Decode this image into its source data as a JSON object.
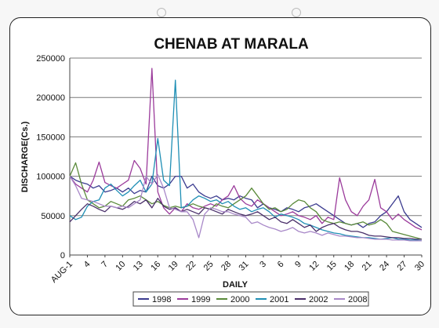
{
  "chart_data": {
    "type": "line",
    "title": "CHENAB AT MARALA",
    "xlabel": "DAILY",
    "ylabel": "DISCHARGE(Cs.)",
    "ylim": [
      0,
      250000
    ],
    "yticks": [
      "0",
      "50000",
      "100000",
      "150000",
      "200000",
      "250000"
    ],
    "x_tick_labels": [
      "AUG-1",
      "4",
      "7",
      "10",
      "13",
      "16",
      "19",
      "22",
      "25",
      "28",
      "31",
      "3",
      "6",
      "9",
      "12",
      "15",
      "18",
      "21",
      "24",
      "27",
      "30"
    ],
    "grid": "horizontal",
    "legend_position": "bottom",
    "series": [
      {
        "name": "1998",
        "color": "#3b3b8f",
        "values": [
          100000,
          95000,
          92000,
          90000,
          85000,
          88000,
          80000,
          82000,
          85000,
          80000,
          85000,
          78000,
          82000,
          80000,
          100000,
          88000,
          85000,
          90000,
          100000,
          100000,
          85000,
          90000,
          80000,
          75000,
          72000,
          75000,
          70000,
          72000,
          70000,
          75000,
          72000,
          70000,
          60000,
          65000,
          60000,
          58000,
          55000,
          60000,
          58000,
          55000,
          60000,
          62000,
          65000,
          60000,
          55000,
          50000,
          45000,
          40000,
          38000,
          40000,
          35000,
          40000,
          42000,
          50000,
          55000,
          65000,
          75000,
          55000,
          45000,
          40000,
          35000
        ]
      },
      {
        "name": "1999",
        "color": "#9b3b9b",
        "values": [
          100000,
          90000,
          85000,
          80000,
          95000,
          118000,
          92000,
          88000,
          85000,
          90000,
          95000,
          120000,
          110000,
          90000,
          237000,
          80000,
          60000,
          52000,
          60000,
          55000,
          65000,
          60000,
          58000,
          62000,
          65000,
          62000,
          70000,
          75000,
          88000,
          72000,
          65000,
          62000,
          70000,
          65000,
          60000,
          55000,
          50000,
          52000,
          55000,
          50000,
          48000,
          45000,
          50000,
          40000,
          48000,
          45000,
          98000,
          70000,
          55000,
          50000,
          62000,
          70000,
          96000,
          60000,
          55000,
          45000,
          52000,
          45000,
          40000,
          35000,
          32000
        ]
      },
      {
        "name": "2000",
        "color": "#5a8a3a",
        "values": [
          100000,
          117000,
          90000,
          70000,
          65000,
          60000,
          62000,
          68000,
          65000,
          62000,
          70000,
          72000,
          75000,
          70000,
          65000,
          68000,
          63000,
          60000,
          62000,
          60000,
          62000,
          65000,
          62000,
          60000,
          58000,
          65000,
          62000,
          60000,
          65000,
          70000,
          75000,
          85000,
          75000,
          65000,
          58000,
          60000,
          55000,
          58000,
          65000,
          70000,
          68000,
          60000,
          55000,
          45000,
          42000,
          40000,
          42000,
          40000,
          38000,
          40000,
          42000,
          38000,
          40000,
          45000,
          40000,
          30000,
          28000,
          26000,
          24000,
          22000,
          20000
        ]
      },
      {
        "name": "2001",
        "color": "#1f8fb5",
        "values": [
          50000,
          45000,
          48000,
          62000,
          68000,
          70000,
          85000,
          90000,
          82000,
          75000,
          80000,
          88000,
          95000,
          80000,
          90000,
          148000,
          95000,
          88000,
          222000,
          60000,
          62000,
          70000,
          75000,
          72000,
          68000,
          70000,
          65000,
          68000,
          62000,
          58000,
          60000,
          55000,
          58000,
          60000,
          55000,
          48000,
          52000,
          50000,
          48000,
          45000,
          40000,
          38000,
          35000,
          32000,
          30000,
          28000,
          27000,
          25000,
          24000,
          23000,
          22000,
          22000,
          21000,
          20000,
          21000,
          22000,
          20000,
          20000,
          19000,
          19000,
          18000
        ]
      },
      {
        "name": "2002",
        "color": "#4a2f6a",
        "values": [
          42000,
          50000,
          58000,
          65000,
          62000,
          58000,
          55000,
          62000,
          60000,
          58000,
          62000,
          68000,
          65000,
          70000,
          60000,
          72000,
          62000,
          58000,
          60000,
          55000,
          58000,
          55000,
          52000,
          60000,
          58000,
          55000,
          52000,
          58000,
          55000,
          52000,
          50000,
          52000,
          55000,
          50000,
          45000,
          48000,
          42000,
          40000,
          45000,
          40000,
          35000,
          38000,
          30000,
          35000,
          38000,
          40000,
          35000,
          32000,
          30000,
          30000,
          28000,
          25000,
          24000,
          24000,
          23000,
          22000,
          22000,
          21000,
          21000,
          20000,
          20000
        ]
      },
      {
        "name": "2008",
        "color": "#a888c8",
        "values": [
          100000,
          88000,
          72000,
          70000,
          68000,
          65000,
          62000,
          62000,
          60000,
          62000,
          60000,
          65000,
          70000,
          100000,
          90000,
          102000,
          85000,
          60000,
          58000,
          55000,
          55000,
          45000,
          22000,
          52000,
          60000,
          58000,
          55000,
          55000,
          52000,
          50000,
          48000,
          40000,
          42000,
          38000,
          35000,
          33000,
          30000,
          32000,
          35000,
          30000,
          28000,
          30000,
          28000,
          25000,
          28000,
          26000,
          24000,
          24000,
          23000,
          22000,
          22000,
          21000,
          20000,
          20000,
          20000,
          19000,
          19000,
          19000,
          18000,
          18000,
          18000
        ]
      }
    ]
  }
}
